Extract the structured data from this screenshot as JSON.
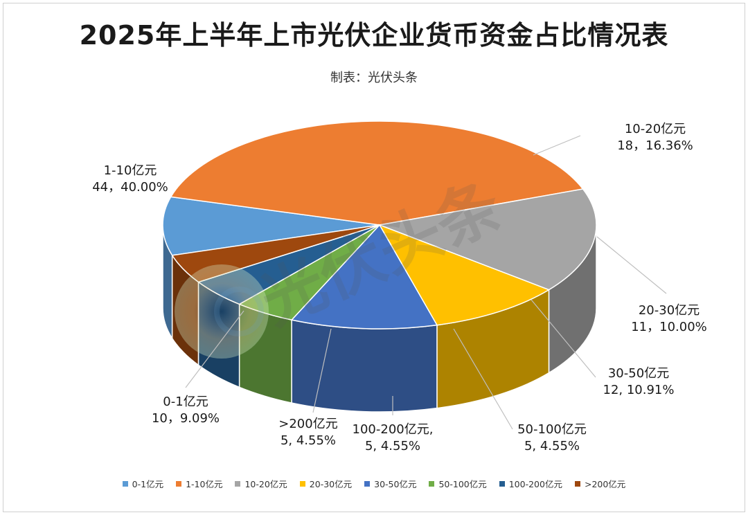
{
  "title": "2025年上半年上市光伏企业货币资金占比情况表",
  "subtitle": "制表：光伏头条",
  "watermark": "光伏头条",
  "chart_data": {
    "type": "pie",
    "title": "2025年上半年上市光伏企业货币资金占比情况表",
    "subtitle": "制表：光伏头条",
    "legend_position": "bottom",
    "slices": [
      {
        "name": "0-1亿元",
        "value": 10,
        "percent": 9.09,
        "color": "#5B9BD5",
        "label_lines": [
          "0-1亿元",
          "10，9.09%"
        ]
      },
      {
        "name": "1-10亿元",
        "value": 44,
        "percent": 40.0,
        "color": "#ED7D31",
        "label_lines": [
          "1-10亿元",
          "44，40.00%"
        ]
      },
      {
        "name": "10-20亿元",
        "value": 18,
        "percent": 16.36,
        "color": "#A5A5A5",
        "label_lines": [
          "10-20亿元",
          "18，16.36%"
        ]
      },
      {
        "name": "20-30亿元",
        "value": 11,
        "percent": 10.0,
        "color": "#FFC000",
        "label_lines": [
          "20-30亿元",
          "11，10.00%"
        ]
      },
      {
        "name": "30-50亿元",
        "value": 12,
        "percent": 10.91,
        "color": "#4472C4",
        "label_lines": [
          "30-50亿元",
          "12, 10.91%"
        ]
      },
      {
        "name": "50-100亿元",
        "value": 5,
        "percent": 4.55,
        "color": "#70AD47",
        "label_lines": [
          "50-100亿元",
          "5, 4.55%"
        ]
      },
      {
        "name": "100-200亿元",
        "value": 5,
        "percent": 4.55,
        "color": "#255E91",
        "label_lines": [
          "100-200亿元,",
          "5, 4.55%"
        ]
      },
      {
        "name": ">200亿元",
        "value": 5,
        "percent": 4.55,
        "color": "#9E480E",
        "label_lines": [
          ">200亿元",
          "5, 4.55%"
        ]
      }
    ]
  }
}
